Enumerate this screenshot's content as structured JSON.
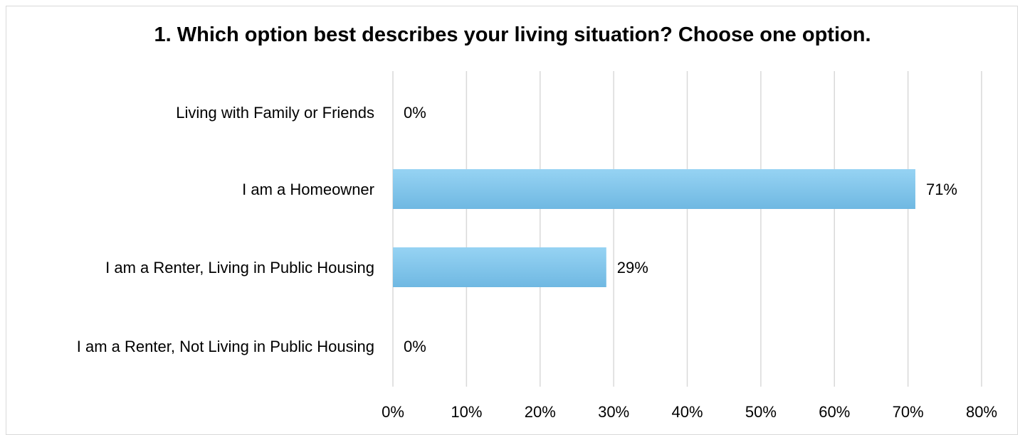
{
  "chart_data": {
    "type": "bar",
    "orientation": "horizontal",
    "title": "1. Which option best describes your living situation? Choose one option.",
    "categories": [
      "Living with Family or Friends",
      "I am a Homeowner",
      "I am a Renter, Living in Public Housing",
      "I am a Renter, Not Living in Public Housing"
    ],
    "values": [
      0,
      71,
      29,
      0
    ],
    "data_labels": [
      "0%",
      "71%",
      "29%",
      "0%"
    ],
    "xlim": [
      0,
      80
    ],
    "x_ticks": [
      0,
      10,
      20,
      30,
      40,
      50,
      60,
      70,
      80
    ],
    "x_tick_labels": [
      "0%",
      "10%",
      "20%",
      "30%",
      "40%",
      "50%",
      "60%",
      "70%",
      "80%"
    ],
    "xlabel": "",
    "ylabel": "",
    "grid": "vertical",
    "legend": "none",
    "bar_color_top": "#96d3f3",
    "bar_color_bottom": "#6fb8e2",
    "gridline_color": "#d9d9d9"
  }
}
